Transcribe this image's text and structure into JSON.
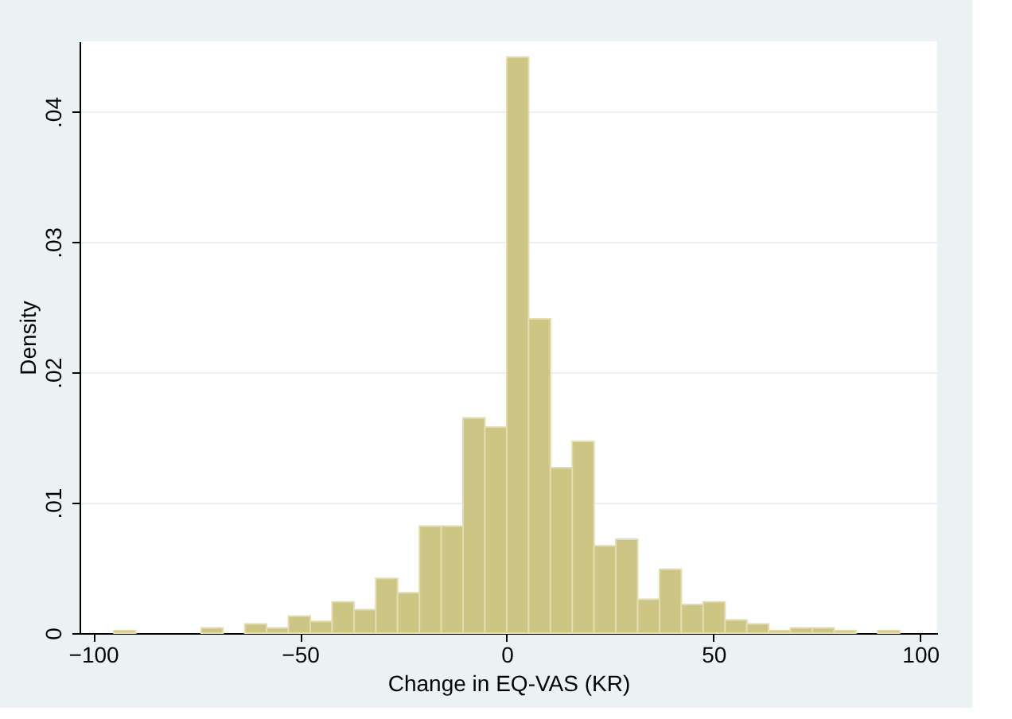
{
  "chart_data": {
    "type": "histogram",
    "xlabel": "Change in EQ-VAS (KR)",
    "ylabel": "Density",
    "color": "#cdc584",
    "bins": [
      -95,
      -89.72,
      -84.44,
      -79.17,
      -73.89,
      -68.61,
      -63.33,
      -58.06,
      -52.78,
      -47.5,
      -42.22,
      -36.94,
      -31.67,
      -26.39,
      -21.11,
      -15.83,
      -10.56,
      -5.28,
      0,
      5.28,
      10.56,
      15.83,
      21.11,
      26.39,
      31.67,
      36.94,
      42.22,
      47.5,
      52.78,
      58.06,
      63.33,
      68.61,
      73.89,
      79.17,
      84.44,
      89.72,
      95
    ],
    "values": [
      0.0002,
      0,
      0,
      0,
      0.0004,
      0,
      0.0007,
      0.0004,
      0.0013,
      0.0009,
      0.0024,
      0.0018,
      0.0042,
      0.0031,
      0.0082,
      0.0082,
      0.0165,
      0.0158,
      0.0442,
      0.0241,
      0.0127,
      0.0147,
      0.0067,
      0.0072,
      0.0026,
      0.0049,
      0.0022,
      0.0024,
      0.001,
      0.0007,
      0.0002,
      0.0004,
      0.0004,
      0.0002,
      0,
      0.0002
    ],
    "xlim": [
      -103.3,
      104.1
    ],
    "xticks": [
      -100,
      -50,
      0,
      50,
      100
    ],
    "ylim": [
      0,
      0.0454
    ],
    "yticks": [
      {
        "value": 0,
        "label": "0"
      },
      {
        "value": 0.01,
        "label": ".01"
      },
      {
        "value": 0.02,
        "label": ".02"
      },
      {
        "value": 0.03,
        "label": ".03"
      },
      {
        "value": 0.04,
        "label": ".04"
      }
    ],
    "grid": "y"
  }
}
